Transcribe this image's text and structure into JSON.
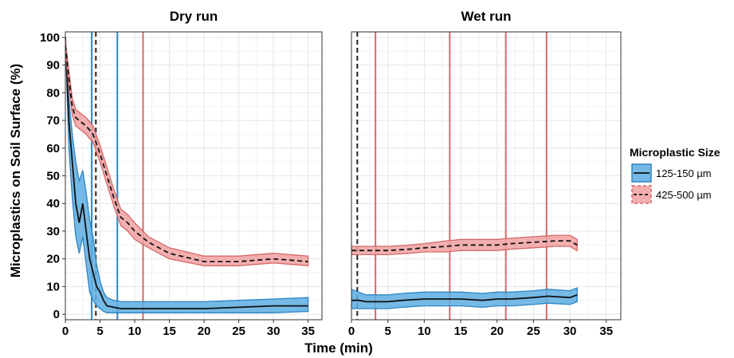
{
  "chart_data": {
    "type": "line",
    "ylabel": "Microplastics on Soil Surface (%)",
    "xlabel": "Time (min)",
    "xlim": [
      0,
      37
    ],
    "ylim": [
      -2,
      102
    ],
    "x_ticks": [
      0,
      5,
      10,
      15,
      20,
      25,
      30,
      35
    ],
    "y_ticks": [
      0,
      10,
      20,
      30,
      40,
      50,
      60,
      70,
      80,
      90,
      100
    ],
    "grid": true,
    "legend": {
      "title": "Microplastic Size",
      "placement": "right",
      "entries": [
        {
          "label": "125-150 µm",
          "color": "#2E86C1",
          "fill": "#5DADE2",
          "linestyle": "solid"
        },
        {
          "label": "425-500 µm",
          "color": "#D46A6A",
          "fill": "#F1A1A1",
          "linestyle": "dashed"
        }
      ]
    },
    "panels": [
      {
        "title": "Dry run",
        "series": [
          {
            "name": "125-150 µm",
            "x": [
              0,
              0.5,
              1,
              1.5,
              2,
              2.5,
              3,
              3.5,
              4,
              4.5,
              5,
              5.5,
              6,
              7,
              8,
              10,
              12,
              15,
              20,
              25,
              30,
              35
            ],
            "y": [
              100,
              70,
              55,
              40,
              33,
              40,
              30,
              20,
              15,
              10,
              8,
              5,
              3,
              2.5,
              2,
              2,
              2,
              2,
              2,
              2.5,
              3,
              3
            ],
            "y_low": [
              100,
              60,
              42,
              28,
              22,
              28,
              18,
              8,
              5,
              3,
              2,
              1,
              0.5,
              0.5,
              0.5,
              0.5,
              0.5,
              0.5,
              0.5,
              0.5,
              0.5,
              1
            ],
            "y_high": [
              100,
              78,
              65,
              55,
              48,
              52,
              44,
              34,
              28,
              18,
              12,
              8,
              6,
              5,
              4.5,
              4.5,
              4.5,
              4.5,
              4.5,
              5,
              5.5,
              6
            ]
          },
          {
            "name": "425-500 µm",
            "x": [
              0,
              0.5,
              1,
              1.5,
              2,
              3,
              4,
              5,
              6,
              7,
              8,
              9,
              10,
              12,
              15,
              20,
              25,
              30,
              35
            ],
            "y": [
              97,
              85,
              75,
              71,
              70,
              68,
              65,
              58,
              50,
              42,
              35,
              33,
              30,
              26,
              22,
              19,
              19,
              20,
              19
            ],
            "y_low": [
              95,
              82,
              72,
              68,
              67,
              65,
              62,
              55,
              47,
              39,
              32,
              30,
              27,
              24,
              20,
              17.5,
              17.5,
              18.5,
              17.5
            ],
            "y_high": [
              99,
              88,
              78,
              74,
              73,
              71,
              68,
              61,
              53,
              45,
              38,
              36,
              33,
              28,
              24,
              21,
              21,
              22,
              21
            ]
          }
        ],
        "vlines": [
          {
            "x": 3.8,
            "color": "#2E86C1",
            "style": "solid"
          },
          {
            "x": 7.5,
            "color": "#2E86C1",
            "style": "solid"
          },
          {
            "x": 4.4,
            "color": "#222222",
            "style": "dashed"
          },
          {
            "x": 11.2,
            "color": "#D46A6A",
            "style": "solid"
          }
        ]
      },
      {
        "title": "Wet run",
        "series": [
          {
            "name": "125-150 µm",
            "x": [
              0,
              1,
              2,
              3,
              5,
              7,
              10,
              13,
              15,
              18,
              20,
              22,
              25,
              27,
              30,
              31
            ],
            "y": [
              5,
              5,
              4.5,
              4.5,
              4.5,
              5,
              5.5,
              5.5,
              5.5,
              5,
              5.5,
              5.5,
              6,
              6.5,
              6,
              7
            ],
            "y_low": [
              2,
              2,
              2,
              2,
              2,
              2.5,
              3,
              3,
              3,
              2.5,
              3,
              3,
              3.5,
              4,
              3.5,
              4.5
            ],
            "y_high": [
              9,
              8,
              7,
              7,
              7,
              7.5,
              8,
              8,
              8,
              7.5,
              8,
              8,
              8.5,
              9,
              8.5,
              9.5
            ]
          },
          {
            "name": "425-500 µm",
            "x": [
              0,
              2,
              5,
              8,
              10,
              13,
              15,
              18,
              20,
              22,
              25,
              28,
              30,
              31
            ],
            "y": [
              23,
              23,
              23,
              23.5,
              24,
              24.5,
              25,
              25,
              25,
              25.5,
              26,
              26.5,
              26.5,
              25
            ],
            "y_low": [
              21.5,
              21.5,
              21.5,
              22,
              22.5,
              22.5,
              23,
              23,
              23,
              23.5,
              24,
              24.5,
              24.5,
              23
            ],
            "y_high": [
              24.5,
              24.5,
              24.5,
              25,
              25.5,
              26.5,
              27,
              27,
              27,
              27.5,
              28,
              28.5,
              28.5,
              27
            ]
          }
        ],
        "vlines": [
          {
            "x": 0.8,
            "color": "#222222",
            "style": "dashed"
          },
          {
            "x": 3.3,
            "color": "#D46A6A",
            "style": "solid"
          },
          {
            "x": 13.5,
            "color": "#D46A6A",
            "style": "solid"
          },
          {
            "x": 21.2,
            "color": "#D46A6A",
            "style": "solid"
          },
          {
            "x": 26.8,
            "color": "#D46A6A",
            "style": "solid"
          }
        ]
      }
    ]
  }
}
